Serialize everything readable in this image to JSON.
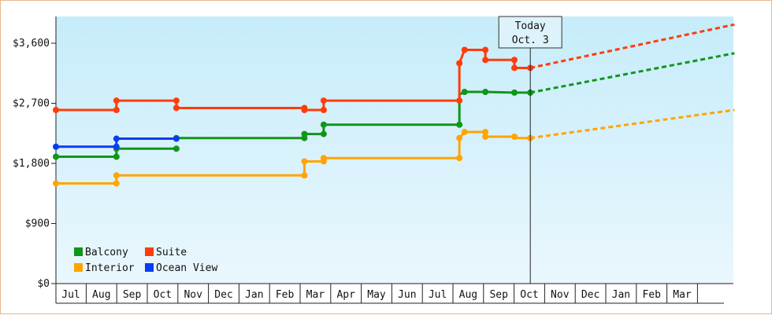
{
  "chart_data": {
    "type": "line",
    "title": "",
    "xlabel": "",
    "ylabel": "",
    "ylim": [
      0,
      4000
    ],
    "y_ticks": [
      {
        "value": 0,
        "label": "$0"
      },
      {
        "value": 900,
        "label": "$900"
      },
      {
        "value": 1800,
        "label": "$1,800"
      },
      {
        "value": 2700,
        "label": "$2,700"
      },
      {
        "value": 3600,
        "label": "$3,600"
      }
    ],
    "x_month_labels": [
      "Jul",
      "Aug",
      "Sep",
      "Oct",
      "Nov",
      "Dec",
      "Jan",
      "Feb",
      "Mar",
      "Apr",
      "May",
      "Jun",
      "Jul",
      "Aug",
      "Sep",
      "Oct",
      "Nov",
      "Dec",
      "Jan",
      "Feb",
      "Mar"
    ],
    "x_range_months": [
      0,
      22.2
    ],
    "grid": false,
    "background_gradient": [
      "#c6ecfa",
      "#eaf7fd"
    ],
    "legend_placement": "bottom-left",
    "today_marker": {
      "x": 15.52,
      "line1": "Today",
      "line2": "Oct. 3"
    },
    "series": [
      {
        "name": "Balcony",
        "color": "#109618",
        "points": [
          [
            0,
            1900
          ],
          [
            1.98,
            1900
          ],
          [
            1.98,
            2020
          ],
          [
            3.94,
            2020
          ]
        ],
        "segments": [
          [
            [
              0,
              1900
            ],
            [
              1.98,
              1900
            ],
            [
              1.98,
              2020
            ],
            [
              3.94,
              2020
            ]
          ],
          [
            [
              1.98,
              2020
            ],
            [
              1.98,
              2020
            ]
          ],
          [
            [
              3.94,
              2180
            ],
            [
              8.13,
              2180
            ],
            [
              8.13,
              2240
            ],
            [
              8.76,
              2240
            ],
            [
              8.76,
              2380
            ],
            [
              13.2,
              2380
            ],
            [
              13.2,
              2830
            ],
            [
              13.37,
              2870
            ],
            [
              14.05,
              2870
            ],
            [
              15.0,
              2860
            ],
            [
              15.52,
              2860
            ]
          ]
        ],
        "markers": [
          [
            0,
            1900
          ],
          [
            1.98,
            1900
          ],
          [
            1.98,
            2020
          ],
          [
            3.94,
            2020
          ],
          [
            3.94,
            2180
          ],
          [
            8.13,
            2180
          ],
          [
            8.13,
            2240
          ],
          [
            8.76,
            2240
          ],
          [
            8.76,
            2380
          ],
          [
            13.2,
            2380
          ],
          [
            13.37,
            2870
          ],
          [
            14.05,
            2870
          ],
          [
            15.0,
            2860
          ],
          [
            15.52,
            2860
          ]
        ],
        "projection": [
          [
            15.52,
            2860
          ],
          [
            22.2,
            3450
          ]
        ]
      },
      {
        "name": "Suite",
        "color": "#ff3c0a",
        "segments": [
          [
            [
              0,
              2600
            ],
            [
              1.98,
              2600
            ],
            [
              1.98,
              2740
            ],
            [
              3.94,
              2740
            ],
            [
              3.94,
              2630
            ],
            [
              8.13,
              2630
            ],
            [
              8.13,
              2600
            ],
            [
              8.76,
              2600
            ],
            [
              8.76,
              2740
            ],
            [
              13.2,
              2740
            ],
            [
              13.2,
              3300
            ],
            [
              13.37,
              3500
            ],
            [
              14.05,
              3500
            ],
            [
              14.05,
              3350
            ],
            [
              15.0,
              3350
            ],
            [
              15.0,
              3230
            ],
            [
              15.52,
              3230
            ]
          ]
        ],
        "markers": [
          [
            0,
            2600
          ],
          [
            1.98,
            2600
          ],
          [
            1.98,
            2740
          ],
          [
            3.94,
            2740
          ],
          [
            3.94,
            2630
          ],
          [
            8.13,
            2630
          ],
          [
            8.13,
            2600
          ],
          [
            8.76,
            2600
          ],
          [
            8.76,
            2740
          ],
          [
            13.2,
            2740
          ],
          [
            13.2,
            3300
          ],
          [
            13.37,
            3500
          ],
          [
            14.05,
            3500
          ],
          [
            14.05,
            3350
          ],
          [
            15.0,
            3350
          ],
          [
            15.0,
            3230
          ],
          [
            15.52,
            3230
          ]
        ],
        "projection": [
          [
            15.52,
            3230
          ],
          [
            22.2,
            3880
          ]
        ]
      },
      {
        "name": "Interior",
        "color": "#ffa500",
        "segments": [
          [
            [
              0,
              1500
            ],
            [
              1.98,
              1500
            ],
            [
              1.98,
              1620
            ],
            [
              8.13,
              1620
            ],
            [
              8.13,
              1830
            ],
            [
              8.76,
              1830
            ],
            [
              8.76,
              1880
            ],
            [
              13.2,
              1880
            ],
            [
              13.2,
              2180
            ],
            [
              13.37,
              2270
            ],
            [
              14.05,
              2270
            ],
            [
              14.05,
              2200
            ],
            [
              15.0,
              2200
            ],
            [
              15.0,
              2180
            ],
            [
              15.52,
              2180
            ]
          ]
        ],
        "markers": [
          [
            0,
            1500
          ],
          [
            1.98,
            1500
          ],
          [
            1.98,
            1620
          ],
          [
            8.13,
            1620
          ],
          [
            8.13,
            1830
          ],
          [
            8.76,
            1830
          ],
          [
            8.76,
            1880
          ],
          [
            13.2,
            1880
          ],
          [
            13.2,
            2180
          ],
          [
            13.37,
            2270
          ],
          [
            14.05,
            2270
          ],
          [
            14.05,
            2200
          ],
          [
            15.0,
            2200
          ],
          [
            15.52,
            2180
          ]
        ],
        "projection": [
          [
            15.52,
            2180
          ],
          [
            22.2,
            2600
          ]
        ]
      },
      {
        "name": "Ocean View",
        "color": "#0a3cf0",
        "segments": [
          [
            [
              0,
              2050
            ],
            [
              1.98,
              2050
            ],
            [
              1.98,
              2170
            ],
            [
              3.94,
              2170
            ]
          ]
        ],
        "markers": [
          [
            0,
            2050
          ],
          [
            1.98,
            2050
          ],
          [
            1.98,
            2170
          ],
          [
            3.94,
            2170
          ]
        ],
        "projection": []
      }
    ]
  }
}
